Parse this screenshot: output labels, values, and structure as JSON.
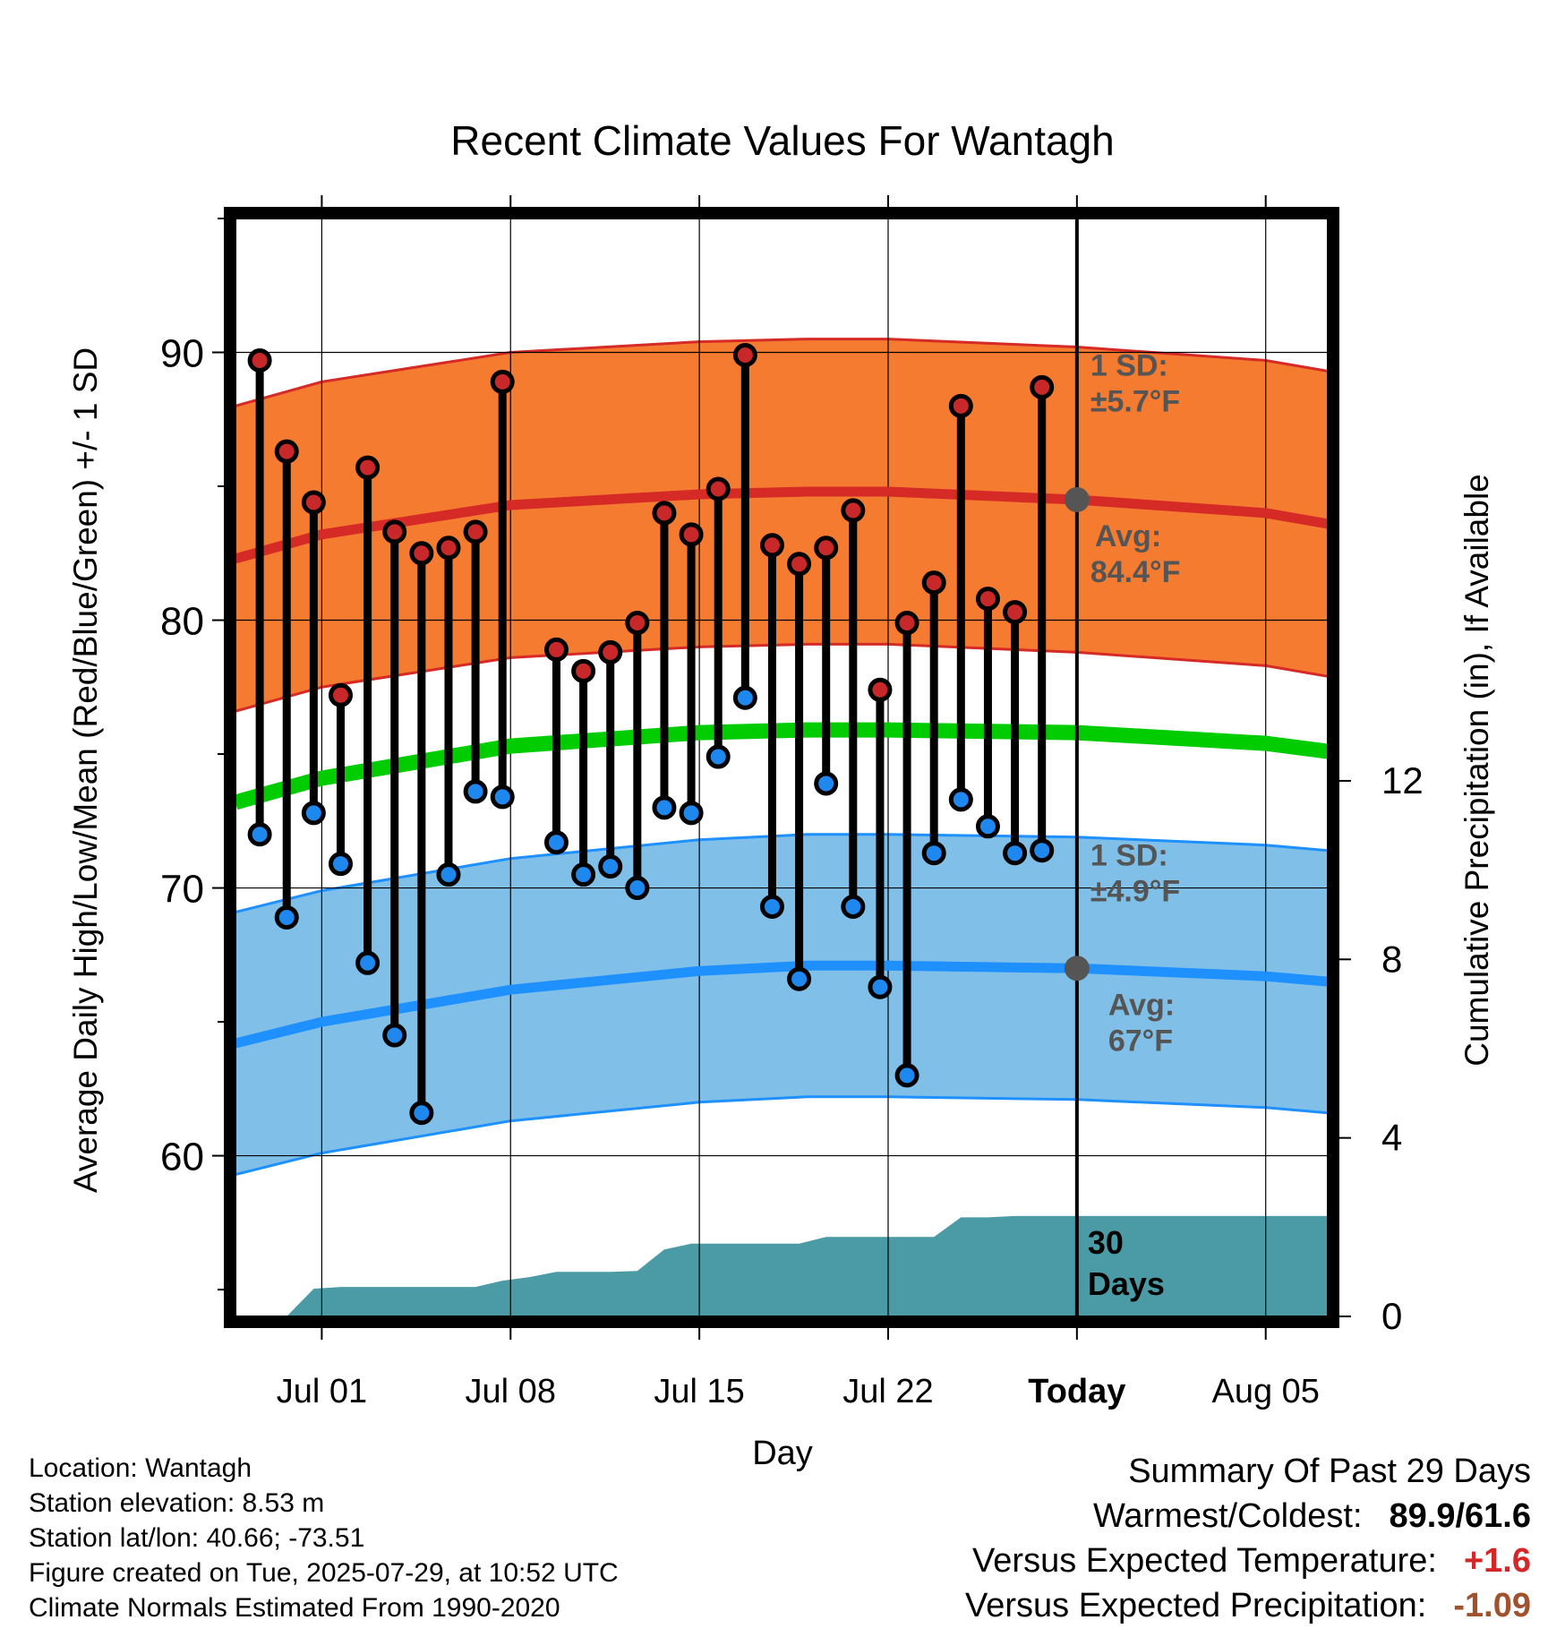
{
  "chart_data": {
    "type": "line",
    "title": "Recent Climate Values For Wantagh",
    "xlabel": "Day",
    "ylabel_left": "Average Daily High/Low/Mean (Red/Blue/Green) +/- 1 SD",
    "ylabel_right": "Cumulative Precipitation (in), If Available",
    "x_ticks": [
      {
        "day": 2,
        "label": "Jul 01"
      },
      {
        "day": 9,
        "label": "Jul 08"
      },
      {
        "day": 16,
        "label": "Jul 15"
      },
      {
        "day": 23,
        "label": "Jul 22"
      },
      {
        "day": 30,
        "label": "Today"
      },
      {
        "day": 37,
        "label": "Aug 05"
      }
    ],
    "xlim": [
      -1.2,
      39.3
    ],
    "ylim": [
      54,
      95
    ],
    "y_ticks": [
      "60",
      "70",
      "80",
      "90"
    ],
    "y2lim": [
      0,
      24.6
    ],
    "y2_ticks": [
      "0",
      "4",
      "8",
      "12"
    ],
    "grid": true,
    "today_day": 30,
    "days": [
      -0.3,
      0.7,
      1.7,
      2.7,
      3.7,
      4.7,
      5.7,
      6.7,
      7.7,
      8.7,
      10.7,
      11.7,
      12.7,
      13.7,
      14.7,
      15.7,
      16.7,
      17.7,
      18.7,
      19.7,
      20.7,
      21.7,
      22.7,
      23.7,
      24.7,
      25.7,
      26.7,
      27.7,
      28.7
    ],
    "highs": [
      89.7,
      86.3,
      84.4,
      77.2,
      85.7,
      83.3,
      82.5,
      82.7,
      83.3,
      88.9,
      78.9,
      78.1,
      78.8,
      79.9,
      84.0,
      83.2,
      84.9,
      89.9,
      82.8,
      82.1,
      82.7,
      84.1,
      77.4,
      79.9,
      81.4,
      88.0,
      80.8,
      80.3,
      88.7
    ],
    "lows": [
      72.0,
      68.9,
      72.8,
      70.9,
      67.2,
      64.5,
      61.6,
      70.5,
      73.6,
      73.4,
      71.7,
      70.5,
      70.8,
      70.0,
      73.0,
      72.8,
      74.9,
      77.1,
      69.3,
      66.6,
      73.9,
      69.3,
      66.3,
      63.0,
      71.3,
      73.3,
      72.3,
      71.3,
      71.4
    ],
    "normals": {
      "days": [
        -1.2,
        2,
        9,
        16,
        20,
        23,
        30,
        37,
        39.3
      ],
      "high_avg": [
        82.3,
        83.2,
        84.3,
        84.7,
        84.8,
        84.8,
        84.5,
        84.0,
        83.6
      ],
      "low_avg": [
        64.2,
        65.0,
        66.2,
        66.9,
        67.1,
        67.1,
        67.0,
        66.7,
        66.5
      ],
      "mean_avg": [
        73.2,
        74.1,
        75.3,
        75.8,
        75.9,
        75.9,
        75.8,
        75.4,
        75.1
      ],
      "high_sd": 5.7,
      "low_sd": 4.9
    },
    "precip": {
      "days": [
        -1.2,
        0.7,
        1.7,
        2.7,
        3.7,
        4.7,
        5.7,
        6.7,
        7.7,
        8.7,
        9.7,
        10.7,
        11.7,
        12.7,
        13.7,
        14.7,
        15.7,
        16.7,
        17.7,
        18.7,
        19.7,
        20.7,
        21.7,
        22.7,
        23.7,
        24.7,
        25.7,
        26.7,
        27.7,
        28.7,
        30,
        39.3
      ],
      "cumulative": [
        0,
        0,
        0.62,
        0.66,
        0.66,
        0.66,
        0.66,
        0.66,
        0.66,
        0.8,
        0.88,
        1.0,
        1.0,
        1.0,
        1.02,
        1.5,
        1.63,
        1.63,
        1.63,
        1.63,
        1.63,
        1.78,
        1.78,
        1.78,
        1.78,
        1.78,
        2.22,
        2.22,
        2.25,
        2.25,
        2.25,
        2.25
      ]
    },
    "annotations": {
      "high_sd_label": "1 SD:",
      "high_sd_value": "±5.7°F",
      "high_avg_label": "Avg:",
      "high_avg_value": "84.4°F",
      "low_sd_label": "1 SD:",
      "low_sd_value": "±4.9°F",
      "low_avg_label": "Avg:",
      "low_avg_value": "67°F",
      "days_number": "30",
      "days_word": "Days"
    },
    "colors": {
      "high_band": "#f47b30",
      "high_line": "#d52a26",
      "low_band": "#80c0e8",
      "low_line": "#1e90ff",
      "mean_line": "#00cc00",
      "precip": "#4a9ba6",
      "high_dot": "#c8282a",
      "low_dot": "#1e88ee",
      "annotation": "#555555"
    }
  },
  "footer": {
    "location": "Location: Wantagh",
    "elevation": "Station elevation: 8.53 m",
    "latlon": "Station lat/lon: 40.66; -73.51",
    "created": "Figure created on Tue, 2025-07-29, at 10:52 UTC",
    "normals": "Climate Normals Estimated From 1990-2020"
  },
  "summary": {
    "title": "Summary Of Past 29 Days",
    "warmest_label": "Warmest/Coldest:",
    "warmest_value": "89.9/61.6",
    "temp_label": "Versus Expected Temperature:",
    "temp_value": "+1.6",
    "precip_label": "Versus Expected Precipitation:",
    "precip_value": "-1.09"
  }
}
